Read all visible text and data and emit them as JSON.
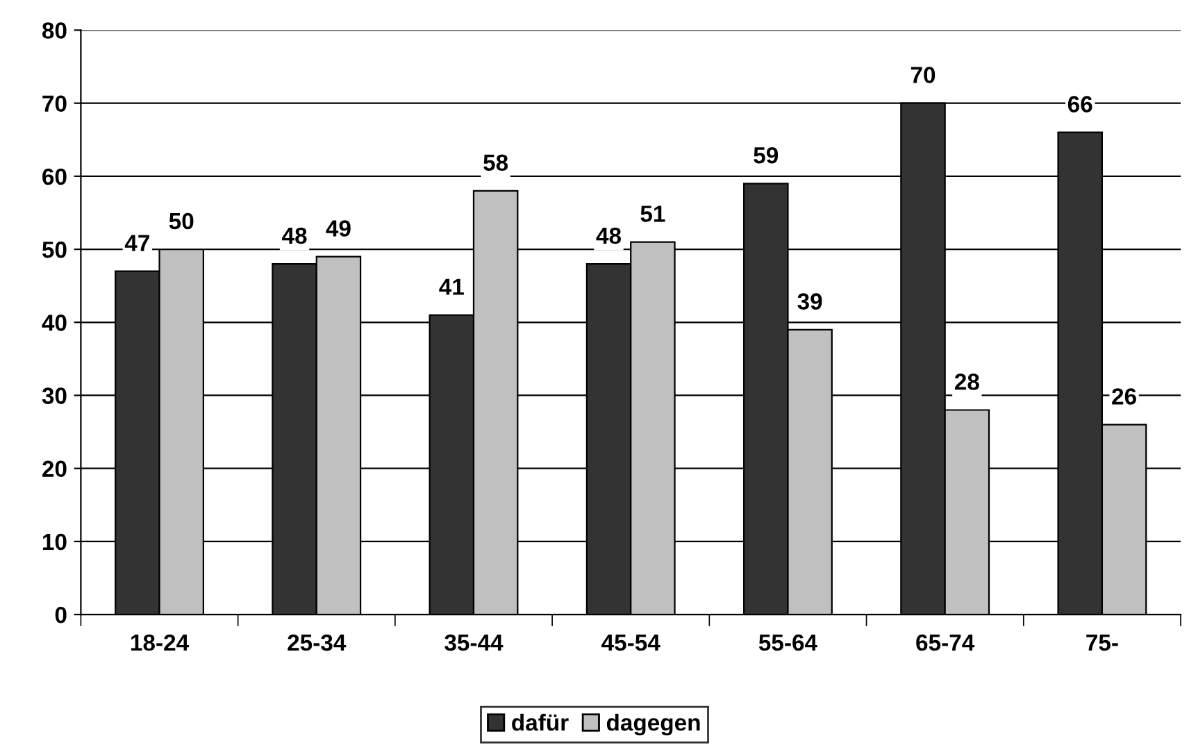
{
  "chart_data": {
    "type": "bar",
    "categories": [
      "18-24",
      "25-34",
      "35-44",
      "45-54",
      "55-64",
      "65-74",
      "75-"
    ],
    "series": [
      {
        "name": "dafür",
        "color": "#333333",
        "values": [
          47,
          48,
          41,
          48,
          59,
          70,
          66
        ]
      },
      {
        "name": "dagegen",
        "color": "#c0c0c0",
        "values": [
          50,
          49,
          58,
          51,
          39,
          28,
          26
        ]
      }
    ],
    "ylim": [
      0,
      80
    ],
    "yticks": [
      0,
      10,
      20,
      30,
      40,
      50,
      60,
      70,
      80
    ],
    "grid": "y",
    "legend": "bottom",
    "data_labels": true
  }
}
